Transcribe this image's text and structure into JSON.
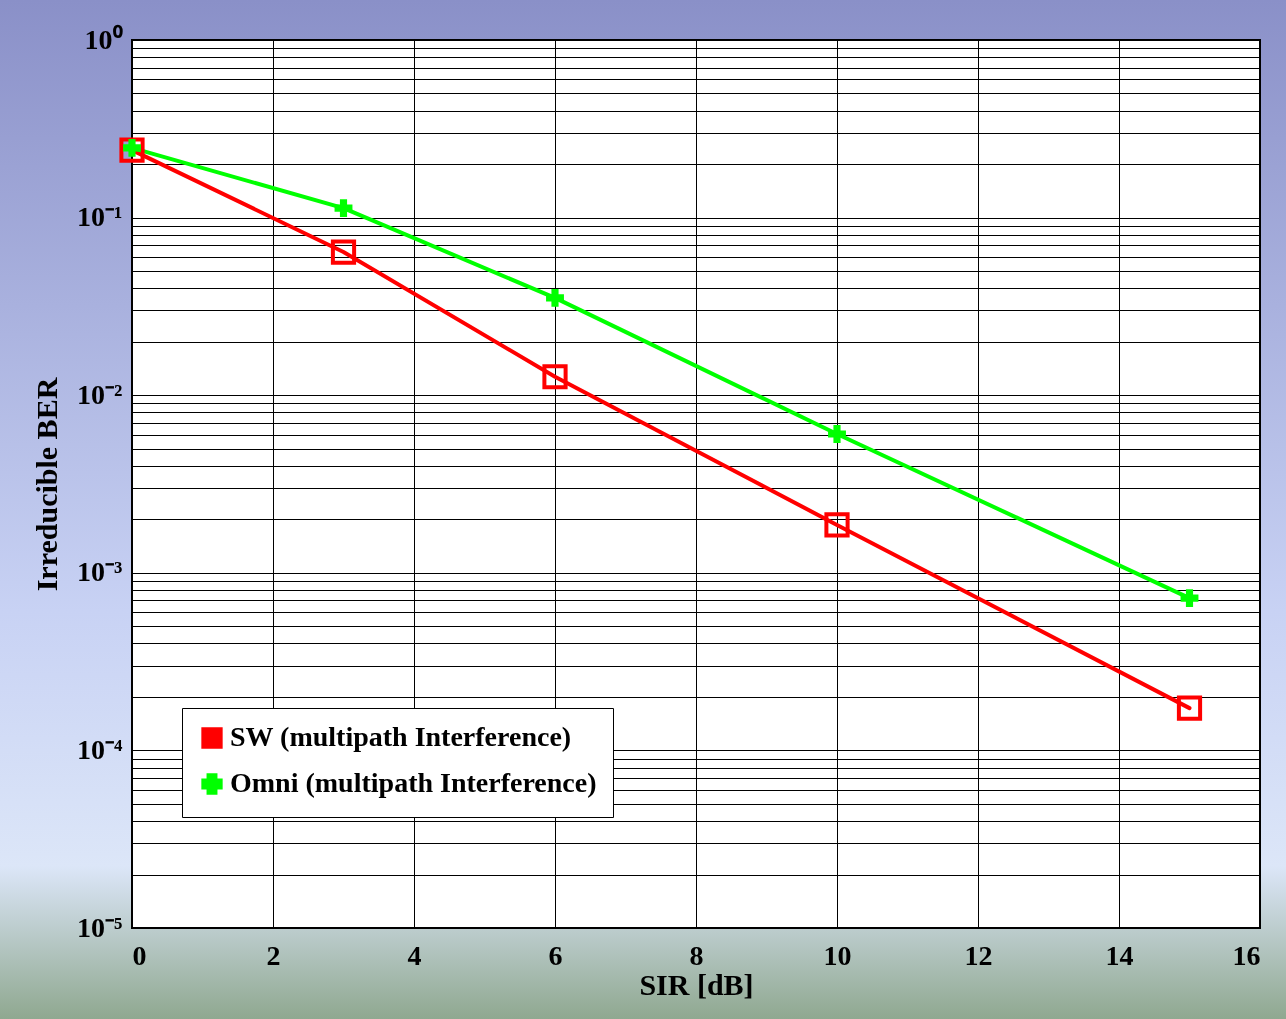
{
  "chart_data": {
    "type": "line",
    "xlabel": "SIR [dB]",
    "ylabel": "Irreducible BER",
    "log": "y",
    "grid": true,
    "legend": "bottom left",
    "xlim": [
      0,
      16
    ],
    "xticks": [
      0,
      2,
      4,
      6,
      8,
      10,
      12,
      14,
      16
    ],
    "ylim": [
      1e-05,
      1
    ],
    "yticks": [
      {
        "value": 1e-05,
        "label": "10⁻⁵"
      },
      {
        "value": 2e-05,
        "label": null
      },
      {
        "value": 3e-05,
        "label": null
      },
      {
        "value": 4e-05,
        "label": null
      },
      {
        "value": 5e-05,
        "label": null
      },
      {
        "value": 6e-05,
        "label": null
      },
      {
        "value": 7e-05,
        "label": null
      },
      {
        "value": 8e-05,
        "label": null
      },
      {
        "value": 9e-05,
        "label": null
      },
      {
        "value": 0.0001,
        "label": "10⁻⁴"
      },
      {
        "value": 0.0002,
        "label": null
      },
      {
        "value": 0.0003,
        "label": null
      },
      {
        "value": 0.0004,
        "label": null
      },
      {
        "value": 0.0005,
        "label": null
      },
      {
        "value": 0.0006,
        "label": null
      },
      {
        "value": 0.0007,
        "label": null
      },
      {
        "value": 0.0008,
        "label": null
      },
      {
        "value": 0.0009,
        "label": null
      },
      {
        "value": 0.001,
        "label": "10⁻³"
      },
      {
        "value": 0.002,
        "label": null
      },
      {
        "value": 0.003,
        "label": null
      },
      {
        "value": 0.004,
        "label": null
      },
      {
        "value": 0.005,
        "label": null
      },
      {
        "value": 0.006,
        "label": null
      },
      {
        "value": 0.007,
        "label": null
      },
      {
        "value": 0.008,
        "label": null
      },
      {
        "value": 0.009,
        "label": null
      },
      {
        "value": 0.01,
        "label": "10⁻²"
      },
      {
        "value": 0.02,
        "label": null
      },
      {
        "value": 0.03,
        "label": null
      },
      {
        "value": 0.04,
        "label": null
      },
      {
        "value": 0.05,
        "label": null
      },
      {
        "value": 0.06,
        "label": null
      },
      {
        "value": 0.07,
        "label": null
      },
      {
        "value": 0.08,
        "label": null
      },
      {
        "value": 0.09,
        "label": null
      },
      {
        "value": 0.1,
        "label": "10⁻¹"
      },
      {
        "value": 0.2,
        "label": null
      },
      {
        "value": 0.3,
        "label": null
      },
      {
        "value": 0.4,
        "label": null
      },
      {
        "value": 0.5,
        "label": null
      },
      {
        "value": 0.6,
        "label": null
      },
      {
        "value": 0.7,
        "label": null
      },
      {
        "value": 0.8,
        "label": null
      },
      {
        "value": 0.9,
        "label": null
      },
      {
        "value": 1,
        "label": "10⁰"
      }
    ],
    "x": [
      0,
      3,
      6,
      10,
      15
    ],
    "series": [
      {
        "name": "SW (multipath Interference)",
        "color": "#ff0000",
        "marker": "square",
        "values": [
          0.24,
          0.064,
          0.0127,
          0.00186,
          0.000173
        ]
      },
      {
        "name": "Omni (multipath Interference)",
        "color": "#00ff00",
        "marker": "cross",
        "values": [
          0.247,
          0.113,
          0.0353,
          0.00605,
          0.00072
        ]
      }
    ]
  }
}
